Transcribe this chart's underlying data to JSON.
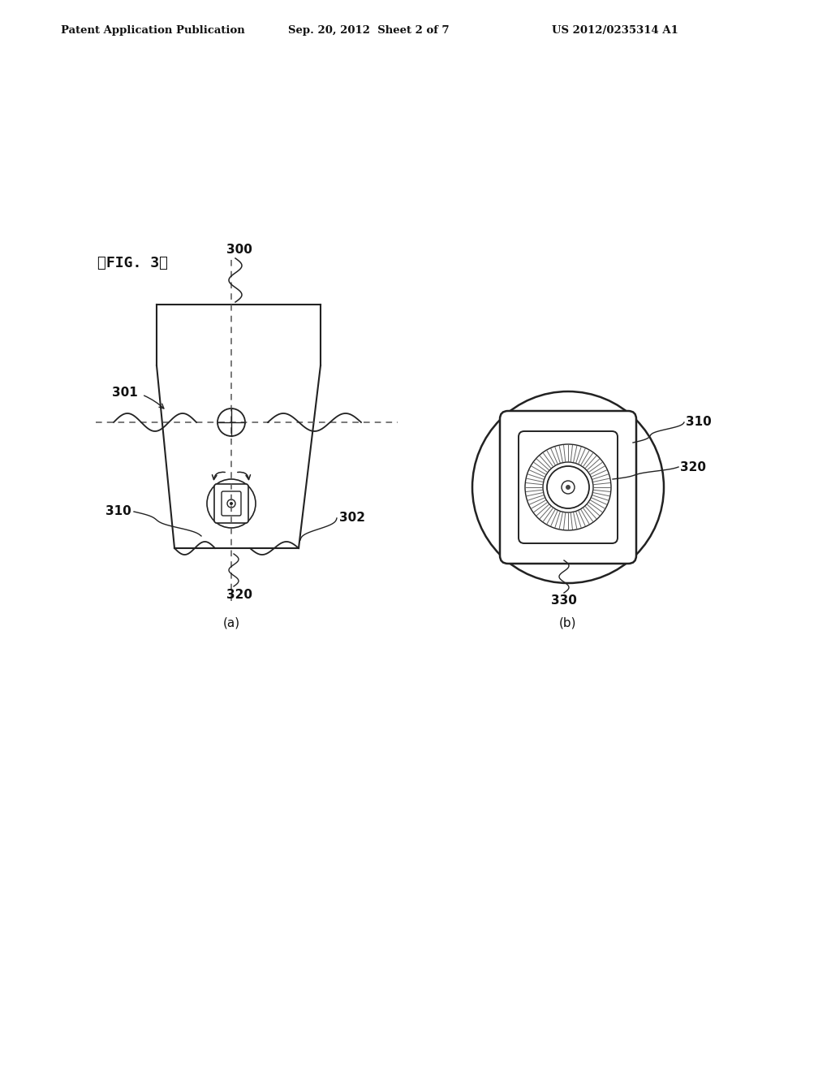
{
  "bg_color": "#ffffff",
  "header_left": "Patent Application Publication",
  "header_center": "Sep. 20, 2012  Sheet 2 of 7",
  "header_right": "US 2012/0235314 A1",
  "fig_label": "』FIG. 3『",
  "sub_a_label": "(a)",
  "sub_b_label": "(b)",
  "label_300": "300",
  "label_301": "301",
  "label_302": "302",
  "label_310_a": "310",
  "label_320_a": "320",
  "label_310_b": "310",
  "label_320_b": "320",
  "label_330_b": "330",
  "line_color": "#222222",
  "text_color": "#111111"
}
